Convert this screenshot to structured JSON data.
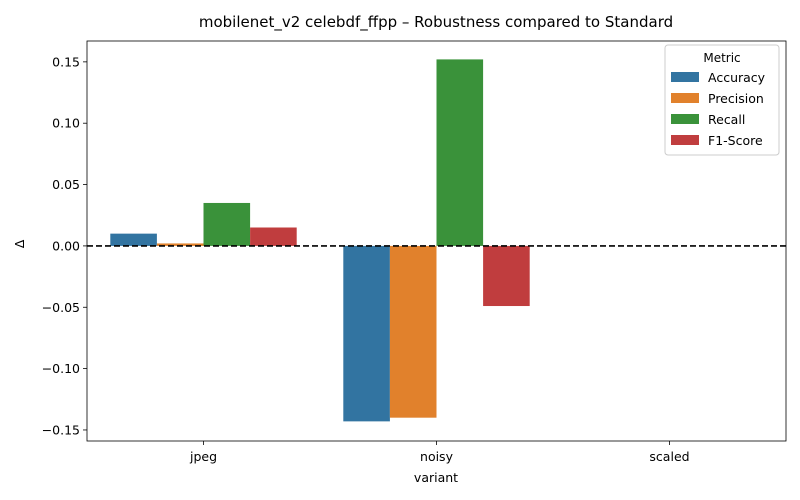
{
  "chart_data": {
    "type": "bar",
    "title": "mobilenet_v2 celebdf_ffpp – Robustness compared to Standard",
    "xlabel": "variant",
    "ylabel": "Δ",
    "categories": [
      "jpeg",
      "noisy",
      "scaled"
    ],
    "ylim": [
      -0.159,
      0.167
    ],
    "yticks": [
      -0.15,
      -0.1,
      -0.05,
      0.0,
      0.05,
      0.1,
      0.15
    ],
    "ytick_labels": [
      "−0.15",
      "−0.10",
      "−0.05",
      "0.00",
      "0.05",
      "0.10",
      "0.15"
    ],
    "reference_line": {
      "y": 0,
      "style": "dashed",
      "color": "#000000"
    },
    "legend": {
      "title": "Metric",
      "placement": "top-right"
    },
    "grid": false,
    "series": [
      {
        "name": "Accuracy",
        "color": "#3274a1",
        "values": [
          0.01,
          -0.143,
          0
        ]
      },
      {
        "name": "Precision",
        "color": "#e1812c",
        "values": [
          0.002,
          -0.14,
          0
        ]
      },
      {
        "name": "Recall",
        "color": "#3a923a",
        "values": [
          0.035,
          0.152,
          0
        ]
      },
      {
        "name": "F1-Score",
        "color": "#c03d3e",
        "values": [
          0.015,
          -0.049,
          0
        ]
      }
    ]
  }
}
